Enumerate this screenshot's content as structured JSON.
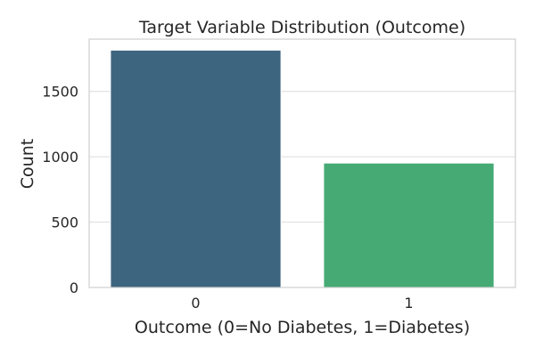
{
  "chart_data": {
    "type": "bar",
    "title": "Target Variable Distribution (Outcome)",
    "xlabel": "Outcome (0=No Diabetes, 1=Diabetes)",
    "ylabel": "Count",
    "categories": [
      "0",
      "1"
    ],
    "values": [
      1816,
      952
    ],
    "colors": [
      "#3e6580",
      "#45aa74"
    ],
    "ylim": [
      0,
      1900
    ],
    "yticks": [
      0,
      500,
      1000,
      1500
    ],
    "grid": true,
    "legend": "none"
  }
}
